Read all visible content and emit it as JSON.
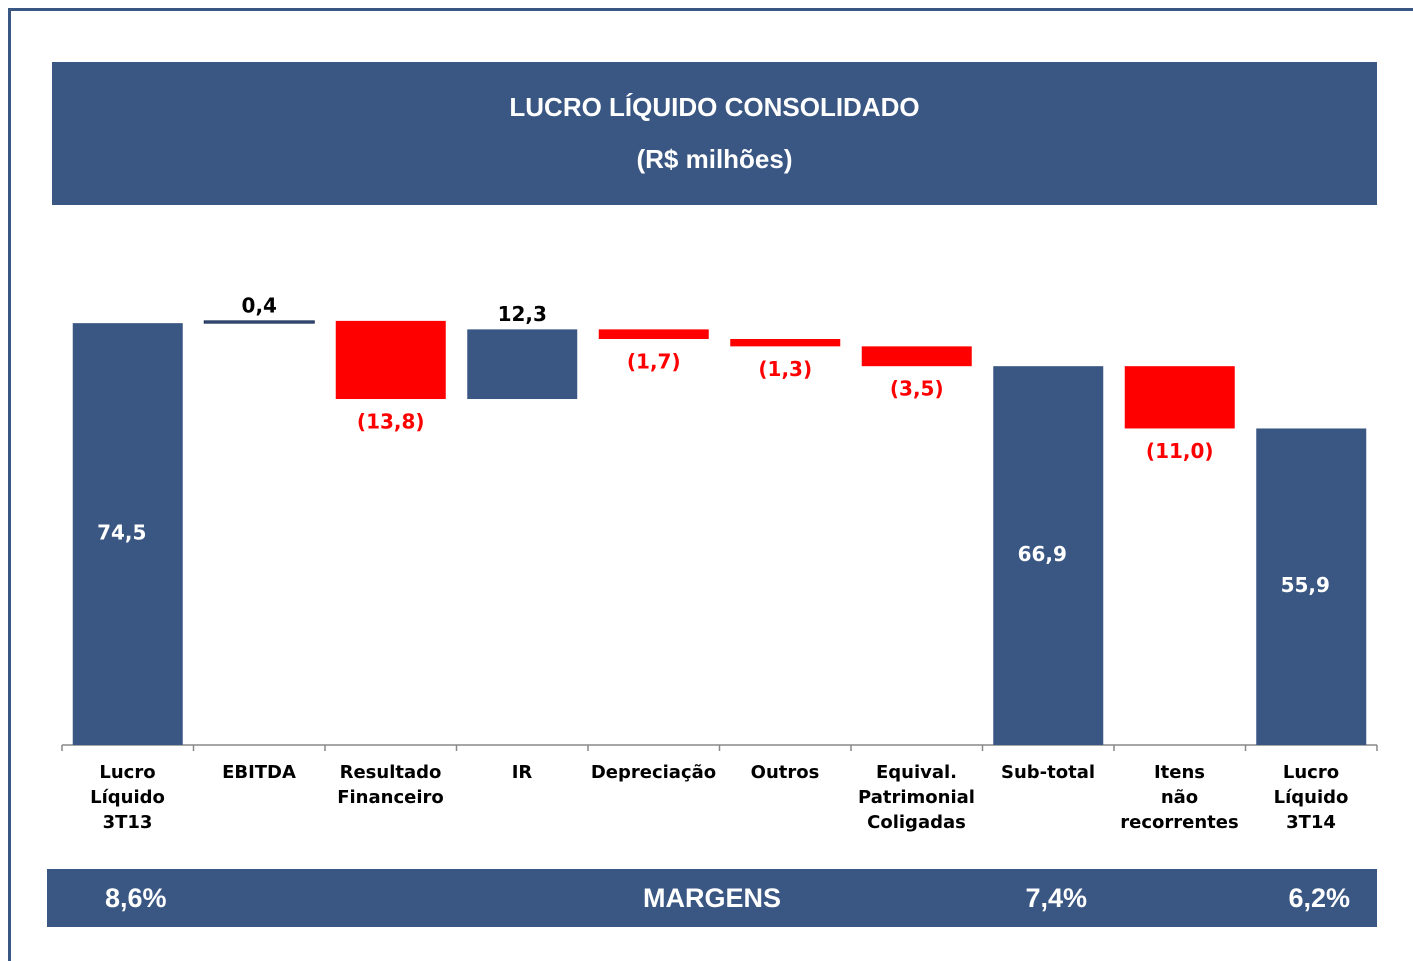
{
  "chart_data": {
    "type": "waterfall",
    "title": "LUCRO LÍQUIDO CONSOLIDADO",
    "subtitle": "(R$ milhões)",
    "categories": [
      "Lucro\nLíquido\n3T13",
      "EBITDA",
      "Resultado\nFinanceiro",
      "IR",
      "Depreciação",
      "Outros",
      "Equival.\nPatrimonial\nColigadas",
      "Sub-total",
      "Itens\nnão\nrecorrentes",
      "Lucro\nLíquido\n3T14"
    ],
    "values": [
      74.5,
      0.4,
      -13.8,
      12.3,
      -1.7,
      -1.3,
      -3.5,
      66.9,
      -11.0,
      55.9
    ],
    "value_labels": [
      "74,5",
      "0,4",
      "(13,8)",
      "12,3",
      "(1,7)",
      "(1,3)",
      "(3,5)",
      "66,9",
      "(11,0)",
      "55,9"
    ],
    "measure": [
      "absolute",
      "relative",
      "relative",
      "relative",
      "relative",
      "relative",
      "relative",
      "absolute",
      "relative",
      "absolute"
    ],
    "colors": {
      "total": "#3a5783",
      "increase": "#3a5783",
      "decrease": "#ff0000"
    },
    "ylim": [
      0,
      80
    ],
    "margins_title": "MARGENS",
    "margins": [
      8.6,
      null,
      null,
      null,
      null,
      null,
      null,
      7.4,
      null,
      6.2
    ],
    "margins_labels": [
      "8,6%",
      null,
      null,
      null,
      null,
      null,
      null,
      "7,4%",
      null,
      "6,2%"
    ]
  }
}
